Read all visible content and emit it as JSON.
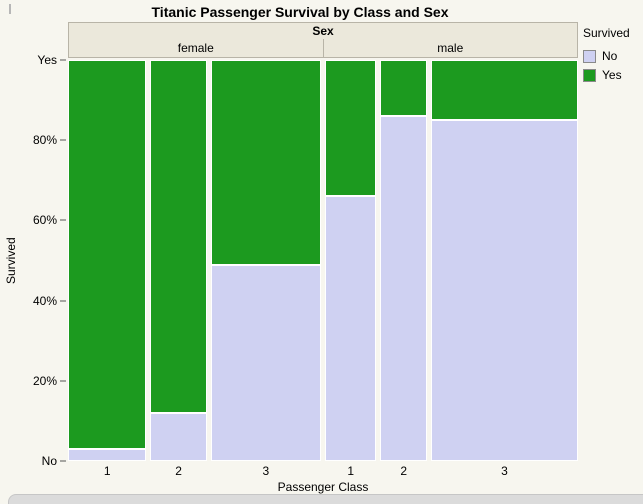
{
  "title": "Titanic Passenger Survival by Class and Sex",
  "header": {
    "sex_label": "Sex",
    "female_label": "female",
    "male_label": "male"
  },
  "y_axis": {
    "label": "Survived",
    "ticks": [
      {
        "label": "Yes",
        "value": 100
      },
      {
        "label": "80%",
        "value": 80
      },
      {
        "label": "60%",
        "value": 60
      },
      {
        "label": "40%",
        "value": 40
      },
      {
        "label": "20%",
        "value": 20
      },
      {
        "label": "No",
        "value": 0
      }
    ]
  },
  "x_axis": {
    "label": "Passenger Class"
  },
  "legend": {
    "title": "Survived",
    "items": [
      {
        "label": "No",
        "color": "#cfd1f2"
      },
      {
        "label": "Yes",
        "color": "#1c9a1f"
      }
    ]
  },
  "colors": {
    "yes": "#1c9a1f",
    "no": "#cfd1f2",
    "plot_bg": "#f7f6ef",
    "band_bg": "#ebe8db",
    "band_border": "#b8b4a7"
  },
  "chart_data": {
    "type": "mosaic",
    "title": "Titanic Passenger Survival by Class and Sex",
    "group_axis": "Sex",
    "xlabel": "Passenger Class",
    "ylabel": "Survived",
    "ylim_pct": [
      0,
      100
    ],
    "legend_position": "top-right",
    "columns": [
      {
        "sex": "female",
        "class": "1",
        "yes_pct": 97,
        "no_pct": 3,
        "width_frac": 0.16
      },
      {
        "sex": "female",
        "class": "2",
        "yes_pct": 88,
        "no_pct": 12,
        "width_frac": 0.115
      },
      {
        "sex": "female",
        "class": "3",
        "yes_pct": 51,
        "no_pct": 49,
        "width_frac": 0.225
      },
      {
        "sex": "male",
        "class": "1",
        "yes_pct": 34,
        "no_pct": 66,
        "width_frac": 0.105
      },
      {
        "sex": "male",
        "class": "2",
        "yes_pct": 14,
        "no_pct": 86,
        "width_frac": 0.095
      },
      {
        "sex": "male",
        "class": "3",
        "yes_pct": 15,
        "no_pct": 85,
        "width_frac": 0.3
      }
    ]
  }
}
